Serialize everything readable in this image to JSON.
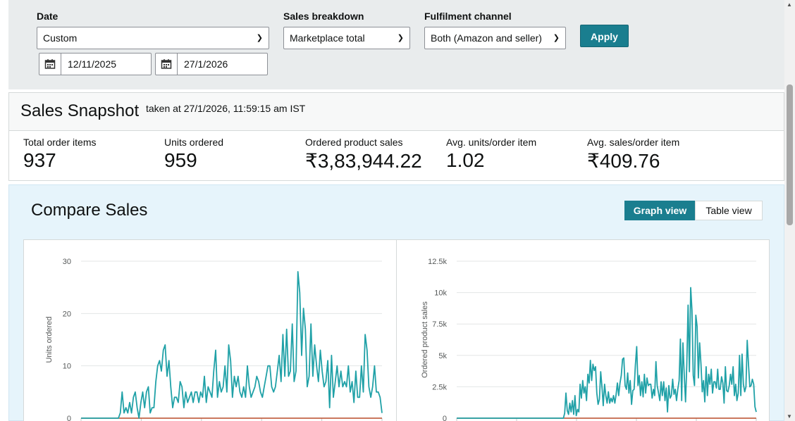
{
  "filters": {
    "date_label": "Date",
    "date_value": "Custom",
    "start_date": "12/11/2025",
    "end_date": "27/1/2026",
    "breakdown_label": "Sales breakdown",
    "breakdown_value": "Marketplace total",
    "channel_label": "Fulfilment channel",
    "channel_value": "Both (Amazon and seller)",
    "apply_label": "Apply"
  },
  "snapshot": {
    "title": "Sales Snapshot",
    "taken_at": "taken at 27/1/2026, 11:59:15 am IST",
    "metrics": [
      {
        "label": "Total order items",
        "value": "937"
      },
      {
        "label": "Units ordered",
        "value": "959"
      },
      {
        "label": "Ordered product sales",
        "value": "₹3,83,944.22"
      },
      {
        "label": "Avg. units/order item",
        "value": "1.02"
      },
      {
        "label": "Avg. sales/order item",
        "value": "₹409.76"
      }
    ]
  },
  "compare": {
    "title": "Compare Sales",
    "graph_view": "Graph view",
    "table_view": "Table view",
    "active_view": "graph"
  },
  "colors": {
    "accent": "#1a7e8f",
    "series": "#20a1a7",
    "baseline": "#b84c28"
  },
  "chart_data": [
    {
      "type": "line",
      "ylabel": "Units ordered",
      "ylim": [
        0,
        30
      ],
      "yticks": [
        "0",
        "10",
        "20",
        "30"
      ],
      "grid": true,
      "series": [
        {
          "values": [
            0,
            0,
            0,
            0,
            0,
            0,
            0,
            0,
            0,
            0,
            0,
            0,
            0,
            0,
            0,
            0,
            0,
            0,
            0,
            0,
            0,
            1,
            5,
            1,
            2,
            1,
            3,
            1,
            4,
            5,
            2,
            0,
            3,
            5,
            2,
            5,
            6,
            1,
            2,
            2,
            7,
            10,
            11,
            9,
            13,
            14,
            8,
            11,
            6,
            2,
            4,
            4,
            3,
            7,
            6,
            2,
            5,
            3,
            4,
            5,
            3,
            5,
            5,
            3,
            5,
            4,
            8,
            3,
            6,
            5,
            4,
            9,
            13,
            4,
            7,
            5,
            6,
            10,
            5,
            14,
            11,
            4,
            8,
            6,
            8,
            5,
            4,
            6,
            4,
            10,
            6,
            4,
            5,
            6,
            8,
            7,
            5,
            4,
            6,
            8,
            10,
            10,
            6,
            5,
            6,
            9,
            12,
            7,
            16,
            8,
            17,
            8,
            9,
            18,
            7,
            9,
            28,
            24,
            12,
            21,
            17,
            6,
            8,
            18,
            8,
            14,
            10,
            7,
            13,
            9,
            6,
            7,
            11,
            2,
            12,
            4,
            7,
            10,
            6,
            9,
            6,
            7,
            6,
            10,
            5,
            7,
            3,
            9,
            4,
            4,
            10,
            5,
            16,
            13,
            6,
            4,
            6,
            10,
            5,
            5,
            4,
            1
          ]
        },
        {
          "values": [
            0,
            0
          ]
        }
      ]
    },
    {
      "type": "line",
      "ylabel": "Ordered product sales",
      "ylim": [
        0,
        12500
      ],
      "yticks": [
        "0",
        "2.5k",
        "5k",
        "7.5k",
        "10k",
        "12.5k"
      ],
      "grid": true,
      "series": [
        {
          "values": [
            0,
            0,
            0,
            0,
            0,
            0,
            0,
            0,
            0,
            0,
            0,
            0,
            0,
            0,
            0,
            0,
            0,
            0,
            0,
            0,
            0,
            0,
            0,
            0,
            0,
            0,
            0,
            0,
            0,
            0,
            0,
            0,
            0,
            0,
            0,
            0,
            0,
            0,
            0,
            0,
            0,
            0,
            0,
            0,
            0,
            0,
            0,
            0,
            0,
            0,
            0,
            0,
            0,
            0,
            0,
            0,
            0,
            0,
            0,
            0,
            0,
            0,
            0,
            0,
            0,
            0,
            0,
            0,
            0,
            0,
            0,
            0,
            0,
            0,
            0,
            0,
            0,
            0,
            0,
            0,
            0,
            0,
            0,
            0,
            400,
            2000,
            600,
            300,
            1200,
            500,
            1400,
            300,
            1800,
            200,
            700,
            500,
            2700,
            1600,
            3000,
            2000,
            2500,
            1400,
            3500,
            2800,
            4600,
            3000,
            4300,
            3800,
            4100,
            2000,
            1100,
            1500,
            3700,
            2500,
            1000,
            2700,
            1800,
            1200,
            2100,
            1200,
            1600,
            1300,
            1800,
            1200,
            1900,
            2800,
            1800,
            2800,
            3400,
            4700,
            4800,
            2600,
            2300,
            3600,
            2000,
            3000,
            1100,
            2200,
            2300,
            4200,
            5700,
            2600,
            3400,
            1800,
            2900,
            1700,
            3500,
            2000,
            3200,
            2600,
            2700,
            2700,
            1600,
            2300,
            1800,
            4500,
            2600,
            2000,
            1400,
            2900,
            1800,
            2900,
            1400,
            2400,
            500,
            2600,
            1600,
            1800,
            3100,
            1900,
            2300,
            1400,
            2300,
            3000,
            6300,
            1400,
            6000,
            3400,
            1300,
            4300,
            9000,
            3700,
            10400,
            8600,
            3400,
            2600,
            8200,
            7300,
            3200,
            6000,
            4300,
            2100,
            3000,
            1300,
            4100,
            1800,
            3500,
            2700,
            3900,
            2000,
            2900,
            2900,
            2400,
            3900,
            2300,
            2300,
            3300,
            2800,
            1200,
            4100,
            2200,
            2100,
            2600,
            3500,
            2700,
            4100,
            1800,
            2700,
            1400,
            2000,
            5000,
            1800,
            5100,
            2700,
            2100,
            2500,
            6200,
            4200,
            2500,
            2600,
            3100,
            2700,
            900,
            500
          ]
        },
        {
          "values": [
            0,
            0
          ]
        }
      ]
    }
  ]
}
